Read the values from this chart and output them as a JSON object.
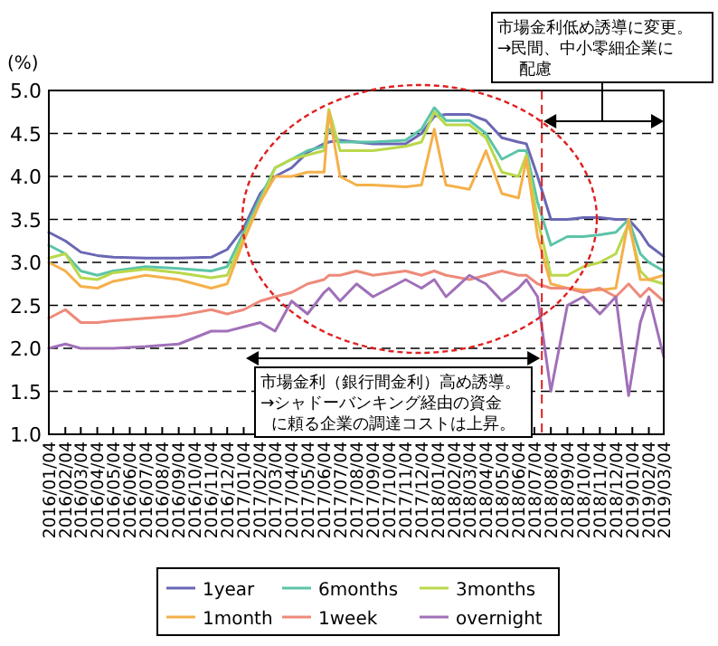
{
  "chart_data": {
    "type": "line",
    "ylabel": "(%)",
    "xlim": [
      "2016-01-04",
      "2019-03-04"
    ],
    "xticks": [
      {
        "value": "2016-01-04",
        "label": "2016/01/04"
      },
      {
        "value": "2016-02-04",
        "label": "2016/02/04"
      },
      {
        "value": "2016-03-04",
        "label": "2016/03/04"
      },
      {
        "value": "2016-04-04",
        "label": "2016/04/04"
      },
      {
        "value": "2016-05-04",
        "label": "2016/05/04"
      },
      {
        "value": "2016-06-04",
        "label": "2016/06/04"
      },
      {
        "value": "2016-07-04",
        "label": "2016/07/04"
      },
      {
        "value": "2016-08-04",
        "label": "2016/08/04"
      },
      {
        "value": "2016-09-04",
        "label": "2016/09/04"
      },
      {
        "value": "2016-10-04",
        "label": "2016/10/04"
      },
      {
        "value": "2016-11-04",
        "label": "2016/11/04"
      },
      {
        "value": "2016-12-04",
        "label": "2016/12/04"
      },
      {
        "value": "2017-01-04",
        "label": "2017/01/04"
      },
      {
        "value": "2017-02-04",
        "label": "2017/02/04"
      },
      {
        "value": "2017-03-04",
        "label": "2017/03/04"
      },
      {
        "value": "2017-04-04",
        "label": "2017/04/04"
      },
      {
        "value": "2017-05-04",
        "label": "2017/05/04"
      },
      {
        "value": "2017-06-04",
        "label": "2017/06/04"
      },
      {
        "value": "2017-07-04",
        "label": "2017/07/04"
      },
      {
        "value": "2017-08-04",
        "label": "2017/08/04"
      },
      {
        "value": "2017-09-04",
        "label": "2017/09/04"
      },
      {
        "value": "2017-10-04",
        "label": "2017/10/04"
      },
      {
        "value": "2017-11-04",
        "label": "2017/11/04"
      },
      {
        "value": "2017-12-04",
        "label": "2017/12/04"
      },
      {
        "value": "2018-01-04",
        "label": "2018/01/04"
      },
      {
        "value": "2018-02-04",
        "label": "2018/02/04"
      },
      {
        "value": "2018-03-04",
        "label": "2018/03/04"
      },
      {
        "value": "2018-04-04",
        "label": "2018/04/04"
      },
      {
        "value": "2018-05-04",
        "label": "2018/05/04"
      },
      {
        "value": "2018-06-04",
        "label": "2018/06/04"
      },
      {
        "value": "2018-07-04",
        "label": "2018/07/04"
      },
      {
        "value": "2018-08-04",
        "label": "2018/08/04"
      },
      {
        "value": "2018-09-04",
        "label": "2018/09/04"
      },
      {
        "value": "2018-10-04",
        "label": "2018/10/04"
      },
      {
        "value": "2018-11-04",
        "label": "2018/11/04"
      },
      {
        "value": "2018-12-04",
        "label": "2018/12/04"
      },
      {
        "value": "2019-01-04",
        "label": "2019/01/04"
      },
      {
        "value": "2019-02-04",
        "label": "2019/02/04"
      },
      {
        "value": "2019-03-04",
        "label": "2019/03/04"
      }
    ],
    "ylim": [
      1,
      5
    ],
    "yticks": [
      {
        "value": 1,
        "label": "1.0"
      },
      {
        "value": 1.5,
        "label": "1.5"
      },
      {
        "value": 2,
        "label": "2.0"
      },
      {
        "value": 2.5,
        "label": "2.5"
      },
      {
        "value": 3,
        "label": "3.0"
      },
      {
        "value": 3.5,
        "label": "3.5"
      },
      {
        "value": 4,
        "label": "4.0"
      },
      {
        "value": 4.5,
        "label": "4.5"
      },
      {
        "value": 5,
        "label": "5.0"
      }
    ],
    "grid": "y",
    "legend": "bottom",
    "line_style": "solid",
    "x": [
      "2016-01-04",
      "2016-02-04",
      "2016-03-04",
      "2016-04-04",
      "2016-05-04",
      "2016-07-04",
      "2016-09-04",
      "2016-11-04",
      "2016-12-04",
      "2017-01-04",
      "2017-02-04",
      "2017-03-04",
      "2017-04-04",
      "2017-05-04",
      "2017-06-04",
      "2017-06-13",
      "2017-07-04",
      "2017-08-04",
      "2017-09-04",
      "2017-11-04",
      "2017-12-04",
      "2017-12-28",
      "2018-01-19",
      "2018-03-04",
      "2018-04-04",
      "2018-05-04",
      "2018-06-04",
      "2018-06-19",
      "2018-07-10",
      "2018-08-04",
      "2018-09-04",
      "2018-10-04",
      "2018-11-04",
      "2018-12-04",
      "2018-12-28",
      "2019-01-19",
      "2019-02-04",
      "2019-03-04"
    ],
    "series": [
      {
        "name": "1year",
        "color": "#6a67b5",
        "values": [
          3.35,
          3.25,
          3.12,
          3.08,
          3.06,
          3.05,
          3.05,
          3.06,
          3.15,
          3.4,
          3.8,
          4.0,
          4.1,
          4.28,
          4.38,
          4.4,
          4.42,
          4.4,
          4.38,
          4.38,
          4.5,
          4.7,
          4.72,
          4.72,
          4.65,
          4.45,
          4.4,
          4.38,
          4.0,
          3.5,
          3.5,
          3.52,
          3.52,
          3.5,
          3.5,
          3.35,
          3.2,
          3.07
        ]
      },
      {
        "name": "6months",
        "color": "#5cc4a8",
        "values": [
          3.2,
          3.1,
          2.9,
          2.85,
          2.9,
          2.95,
          2.93,
          2.9,
          2.95,
          3.35,
          3.75,
          4.1,
          4.2,
          4.3,
          4.35,
          4.55,
          4.4,
          4.4,
          4.4,
          4.42,
          4.55,
          4.8,
          4.65,
          4.65,
          4.5,
          4.2,
          4.3,
          4.3,
          3.7,
          3.2,
          3.3,
          3.3,
          3.32,
          3.35,
          3.5,
          3.1,
          3.0,
          2.9
        ]
      },
      {
        "name": "3months",
        "color": "#b9d84a",
        "values": [
          3.05,
          3.1,
          2.82,
          2.8,
          2.88,
          2.92,
          2.88,
          2.82,
          2.85,
          3.3,
          3.7,
          4.1,
          4.2,
          4.25,
          4.3,
          4.78,
          4.3,
          4.3,
          4.3,
          4.35,
          4.4,
          4.75,
          4.6,
          4.6,
          4.45,
          4.05,
          4.0,
          4.25,
          3.5,
          2.85,
          2.85,
          2.95,
          3.0,
          3.1,
          3.45,
          2.9,
          2.8,
          2.75
        ]
      },
      {
        "name": "1month",
        "color": "#f5b04a",
        "values": [
          3.0,
          2.9,
          2.72,
          2.7,
          2.78,
          2.85,
          2.8,
          2.7,
          2.75,
          3.25,
          3.7,
          4.0,
          4.0,
          4.05,
          4.05,
          4.75,
          4.0,
          3.9,
          3.9,
          3.88,
          3.9,
          4.55,
          3.9,
          3.85,
          4.3,
          3.8,
          3.75,
          4.2,
          3.3,
          2.75,
          2.7,
          2.68,
          2.68,
          2.7,
          3.5,
          2.8,
          2.8,
          2.85
        ]
      },
      {
        "name": "1week",
        "color": "#ee8a7a",
        "values": [
          2.35,
          2.45,
          2.3,
          2.3,
          2.32,
          2.35,
          2.38,
          2.45,
          2.4,
          2.45,
          2.55,
          2.6,
          2.65,
          2.75,
          2.8,
          2.85,
          2.85,
          2.9,
          2.85,
          2.9,
          2.85,
          2.9,
          2.85,
          2.8,
          2.85,
          2.9,
          2.85,
          2.85,
          2.75,
          2.7,
          2.7,
          2.65,
          2.7,
          2.6,
          2.75,
          2.6,
          2.7,
          2.55
        ]
      },
      {
        "name": "overnight",
        "color": "#a070b8",
        "values": [
          2.0,
          2.05,
          2.0,
          2.0,
          2.0,
          2.02,
          2.05,
          2.2,
          2.2,
          2.25,
          2.3,
          2.2,
          2.55,
          2.4,
          2.65,
          2.7,
          2.55,
          2.75,
          2.6,
          2.8,
          2.7,
          2.8,
          2.6,
          2.85,
          2.75,
          2.55,
          2.7,
          2.8,
          2.6,
          1.5,
          2.5,
          2.6,
          2.4,
          2.6,
          1.45,
          2.3,
          2.6,
          1.9
        ]
      }
    ],
    "ref_lines": [
      {
        "axis": "x",
        "value": "2018-07-18",
        "color": "#e02020",
        "line_style": "dashed"
      }
    ],
    "annotations": [
      "市場金利（銀行間金利）高め誘導。",
      "→シャドーバンキング経由の資金",
      "に頼る企業の調達コストは上昇。",
      "市場金利低め誘導に変更。",
      "→民間、中小零細企業に",
      "配慮"
    ]
  }
}
